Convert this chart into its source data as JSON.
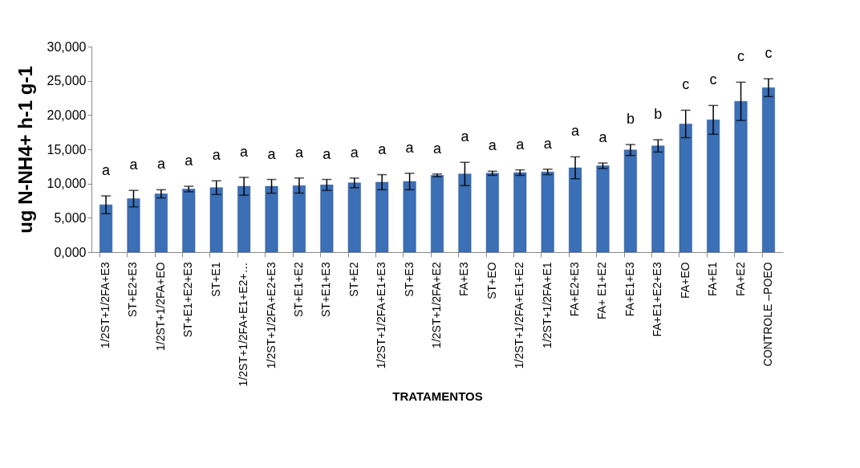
{
  "chart_data": {
    "type": "bar",
    "xlabel": "TRATAMENTOS",
    "ylabel": "ug  N-NH4+ h-1 g-1",
    "categories": [
      "1/2ST+1/2FA+E3",
      "ST+E2+E3",
      "1/2ST+1/2FA+EO",
      "ST+E1+E2+E3",
      "ST+E1",
      "1/2ST+1/2FA+E1+E2+…",
      "1/2ST+1/2FA+E2+E3",
      "ST+E1+E2",
      "ST+E1+E3",
      "ST+E2",
      "1/2ST+1/2FA+E1+E3",
      "ST+E3",
      "1/2ST+1/2FA+E2",
      "FA+E3",
      "ST+EO",
      "1/2ST+1/2FA+E1+E2",
      "1/2ST+1/2FA+E1",
      "FA+E2+E3",
      "FA+ E1+E2",
      "FA+E1+E3",
      "FA+E1+E2+E3",
      "FA+EO",
      "FA+E1",
      "FA+E2",
      "CONTROLE –POEO"
    ],
    "values": [
      6900,
      7800,
      8500,
      9200,
      9400,
      9600,
      9600,
      9700,
      9800,
      10100,
      10200,
      10300,
      11200,
      11400,
      11500,
      11600,
      11700,
      12300,
      12600,
      14900,
      15500,
      18700,
      19300,
      22000,
      24000
    ],
    "errors": [
      1300,
      1200,
      600,
      400,
      1000,
      1300,
      1000,
      1100,
      800,
      700,
      1100,
      1200,
      200,
      1700,
      300,
      400,
      400,
      1600,
      400,
      800,
      900,
      2000,
      2100,
      2800,
      1300
    ],
    "color": "#3b6fb6",
    "ylim": [
      0,
      30000
    ],
    "yticks": [
      {
        "value": 0,
        "label": "0,000"
      },
      {
        "value": 5000,
        "label": "5,000"
      },
      {
        "value": 10000,
        "label": "10,000"
      },
      {
        "value": 15000,
        "label": "15,000"
      },
      {
        "value": 20000,
        "label": "20,000"
      },
      {
        "value": 25000,
        "label": "25,000"
      },
      {
        "value": 30000,
        "label": "30,000"
      }
    ],
    "annotations": [
      "a",
      "a",
      "a",
      "a",
      "a",
      "a",
      "a",
      "a",
      "a",
      "a",
      "a",
      "a",
      "a",
      "a",
      "a",
      "a",
      "a",
      "a",
      "a",
      "b",
      "b",
      "c",
      "c",
      "c",
      "c"
    ]
  }
}
